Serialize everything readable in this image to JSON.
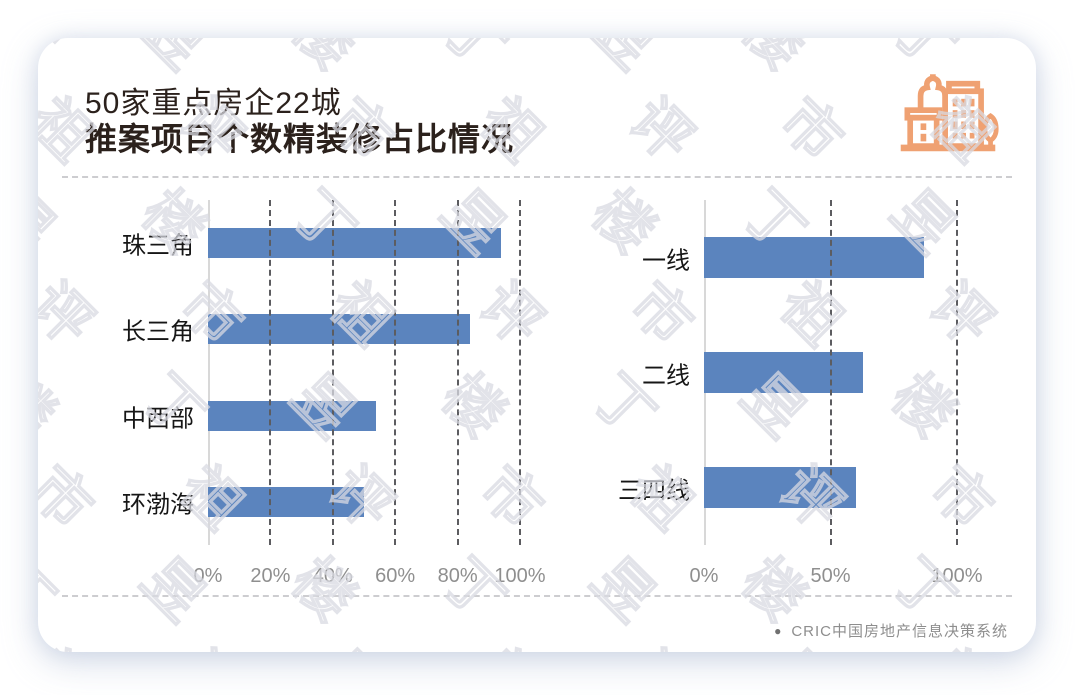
{
  "header": {
    "title_line1": "50家重点房企22城",
    "title_line2": "推案项目个数精装修占比情况"
  },
  "icon": {
    "name": "city-buildings",
    "color": "#EFA172"
  },
  "chart_data": [
    {
      "type": "bar",
      "orientation": "horizontal",
      "title": "",
      "categories": [
        "珠三角",
        "长三角",
        "中西部",
        "环渤海"
      ],
      "values": [
        94,
        84,
        54,
        50
      ],
      "unit": "%",
      "xlim": [
        0,
        100
      ],
      "xticks": [
        "0%",
        "20%",
        "40%",
        "60%",
        "80%",
        "100%"
      ],
      "grid": "vertical-dashed",
      "legend": "none",
      "bar_color": "#5B84BE"
    },
    {
      "type": "bar",
      "orientation": "horizontal",
      "title": "",
      "categories": [
        "一线",
        "二线",
        "三四线"
      ],
      "values": [
        87,
        63,
        60
      ],
      "unit": "%",
      "xlim": [
        0,
        100
      ],
      "xticks": [
        "0%",
        "50%",
        "100%"
      ],
      "grid": "vertical-dashed",
      "legend": "none",
      "bar_color": "#5B84BE"
    }
  ],
  "footer": {
    "bullet": "●",
    "source": "CRIC中国房地产信息决策系统"
  },
  "watermark": {
    "text": "丁祖昱评楼市",
    "color": "#d8dae2"
  },
  "colors": {
    "bar": "#5B84BE",
    "grid": "#5c5c60",
    "axis": "#d8d8d8",
    "title": "#2b211c"
  }
}
